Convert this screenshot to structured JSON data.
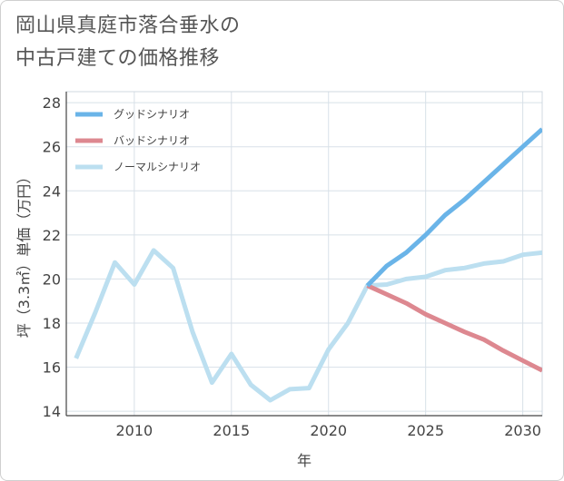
{
  "title_lines": [
    "岡山県真庭市落合垂水の",
    "中古戸建ての価格推移"
  ],
  "chart_data": {
    "type": "line",
    "title": "岡山県真庭市落合垂水の中古戸建ての価格推移",
    "xlabel": "年",
    "ylabel": "坪（3.3㎡）単価（万円）",
    "xlim": [
      2006.5,
      2031
    ],
    "ylim": [
      13.8,
      28.5
    ],
    "xticks": [
      2010,
      2015,
      2020,
      2025,
      2030
    ],
    "yticks": [
      14,
      16,
      18,
      20,
      22,
      24,
      26,
      28
    ],
    "grid": true,
    "legend_position": "top-left",
    "series": [
      {
        "name": "グッドシナリオ",
        "color": "#6ab4e8",
        "x": [
          2022,
          2023,
          2024,
          2025,
          2026,
          2027,
          2028,
          2029,
          2030,
          2031
        ],
        "y": [
          19.7,
          20.6,
          21.2,
          22.0,
          22.9,
          23.6,
          24.4,
          25.2,
          26.0,
          26.8
        ]
      },
      {
        "name": "バッドシナリオ",
        "color": "#dd8890",
        "x": [
          2022,
          2023,
          2024,
          2025,
          2026,
          2027,
          2028,
          2029,
          2030,
          2031
        ],
        "y": [
          19.7,
          19.3,
          18.9,
          18.4,
          18.0,
          17.6,
          17.25,
          16.75,
          16.3,
          15.85
        ]
      },
      {
        "name": "ノーマルシナリオ",
        "color": "#bcdff0",
        "x": [
          2007,
          2008,
          2009,
          2010,
          2011,
          2012,
          2013,
          2014,
          2015,
          2016,
          2017,
          2018,
          2019,
          2020,
          2021,
          2022,
          2023,
          2024,
          2025,
          2026,
          2027,
          2028,
          2029,
          2030,
          2031
        ],
        "y": [
          16.4,
          18.5,
          20.75,
          19.75,
          21.3,
          20.5,
          17.6,
          15.3,
          16.6,
          15.2,
          14.5,
          15.0,
          15.05,
          16.8,
          18.0,
          19.7,
          19.75,
          20.0,
          20.1,
          20.4,
          20.5,
          20.7,
          20.8,
          21.1,
          21.2
        ]
      }
    ]
  }
}
